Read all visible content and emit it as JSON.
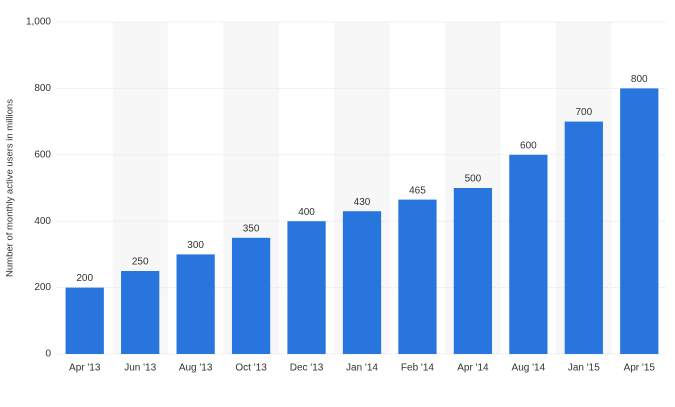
{
  "chart_data": {
    "type": "bar",
    "y_label": "Number of monthly active users in millions",
    "categories": [
      "Apr '13",
      "Jun '13",
      "Aug '13",
      "Oct '13",
      "Dec '13",
      "Jan '14",
      "Feb '14",
      "Apr '14",
      "Aug '14",
      "Jan '15",
      "Apr '15"
    ],
    "values": [
      200,
      250,
      300,
      350,
      400,
      430,
      465,
      500,
      600,
      700,
      800
    ],
    "color": "#2876dd",
    "ylim": [
      0,
      1000
    ],
    "yticks": [
      0,
      200,
      400,
      600,
      800,
      {
        "value": 1000,
        "label": "1,000"
      }
    ],
    "grid": true
  }
}
